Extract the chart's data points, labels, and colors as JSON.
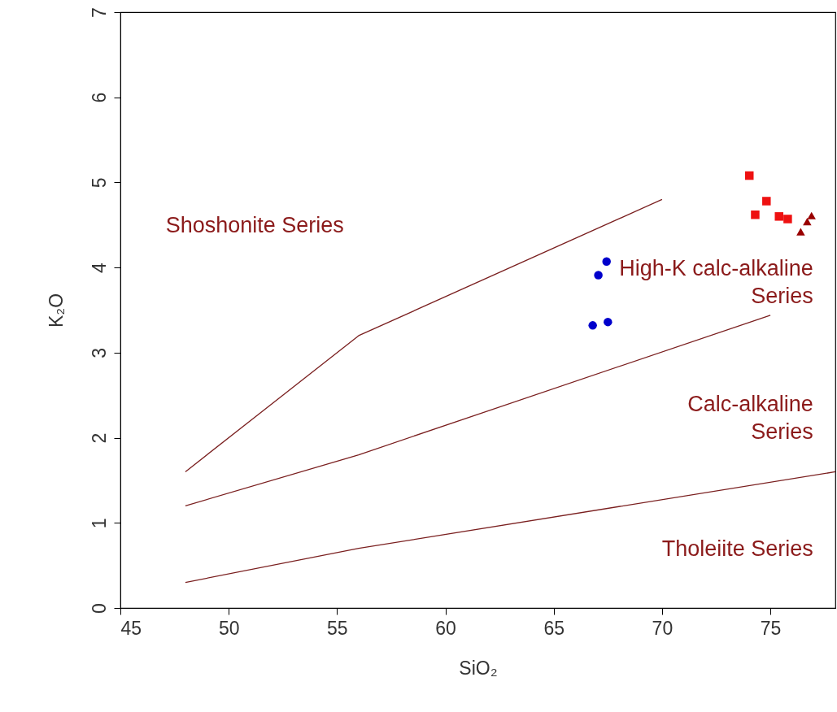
{
  "chart_data": {
    "type": "scatter",
    "xlabel": "SiO₂",
    "ylabel": "K₂O",
    "xlim": [
      45,
      78
    ],
    "ylim": [
      0,
      7
    ],
    "xticks": [
      45,
      50,
      55,
      60,
      65,
      70,
      75
    ],
    "yticks": [
      0,
      1,
      2,
      3,
      4,
      5,
      6,
      7
    ],
    "grid": false,
    "series": [
      {
        "type": "line",
        "color": "#7a1f1f",
        "x": [
          48,
          56,
          70
        ],
        "values": [
          1.6,
          3.2,
          4.8
        ]
      },
      {
        "type": "line",
        "color": "#7a1f1f",
        "x": [
          48,
          56,
          75
        ],
        "values": [
          1.2,
          1.8,
          3.44
        ]
      },
      {
        "type": "line",
        "color": "#7a1f1f",
        "x": [
          48,
          56,
          78
        ],
        "values": [
          0.3,
          0.7,
          1.6
        ]
      },
      {
        "marker": "circle",
        "color": "#0000cc",
        "x": [
          67.44,
          67.06,
          66.8,
          67.5
        ],
        "values": [
          4.07,
          3.91,
          3.32,
          3.36
        ]
      },
      {
        "marker": "square",
        "color": "#ee1111",
        "x": [
          74.03,
          74.82,
          74.3,
          75.4,
          75.8
        ],
        "values": [
          5.08,
          4.78,
          4.62,
          4.6,
          4.57
        ]
      },
      {
        "marker": "triangle",
        "color": "#990000",
        "x": [
          76.9,
          76.7,
          76.4
        ],
        "values": [
          4.61,
          4.54,
          4.42
        ]
      }
    ],
    "annotations": [
      "Shoshonite Series",
      "High-K calc-alkaline\nSeries",
      "Calc-alkaline\nSeries",
      "Tholeiite Series"
    ]
  }
}
